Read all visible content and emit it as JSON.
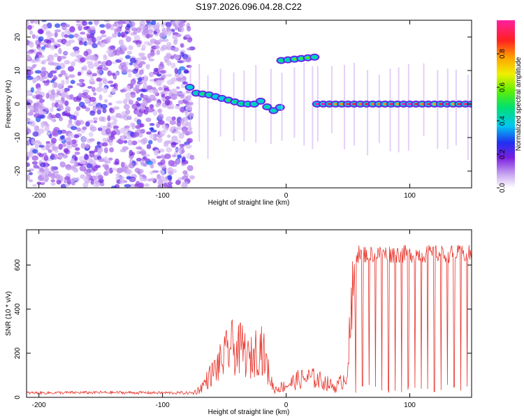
{
  "title": "S197.2026.096.04.28.C22",
  "chart_data": [
    {
      "type": "heatmap",
      "xlabel": "Height of straight line (km)",
      "ylabel": "Frequency (Hz)",
      "xlim": [
        -210,
        150
      ],
      "ylim": [
        -25,
        25
      ],
      "xticks": [
        -200,
        -100,
        0,
        100
      ],
      "yticks": [
        -20,
        -10,
        0,
        10,
        20
      ],
      "colorbar": {
        "label": "Normalized spectral amplitude",
        "range": [
          0,
          1
        ],
        "ticks": [
          "0.0",
          "0.2",
          "0.4",
          "0.6",
          "0.8"
        ]
      },
      "features": [
        {
          "kind": "noise",
          "x_range": [
            -210,
            -76
          ],
          "y_range": [
            -25,
            25
          ],
          "level": 0.2
        },
        {
          "kind": "track",
          "x": [
            -78,
            -72,
            -65,
            -55,
            -45,
            -35,
            -25,
            -20,
            -15,
            -10,
            -5
          ],
          "y": [
            5,
            3,
            3,
            2,
            1,
            0,
            0,
            1,
            -1,
            -2,
            -1
          ],
          "level": 0.45
        },
        {
          "kind": "track",
          "x": [
            -4,
            23
          ],
          "y": [
            13,
            14
          ],
          "level": 0.5
        },
        {
          "kind": "track",
          "x": [
            25,
            150
          ],
          "y": [
            0,
            0
          ],
          "level": 0.9
        }
      ]
    },
    {
      "type": "line",
      "xlabel": "Height of straight line (km)",
      "ylabel": "SNR (10 * v/v)",
      "xlim": [
        -210,
        150
      ],
      "ylim": [
        0,
        760
      ],
      "xticks": [
        -200,
        -100,
        0,
        100
      ],
      "yticks": [
        0,
        200,
        400,
        600
      ],
      "series": [
        {
          "name": "SNR",
          "color": "#e8332a",
          "profile": [
            [
              -210,
              20
            ],
            [
              -150,
              22
            ],
            [
              -76,
              20
            ],
            [
              -70,
              40
            ],
            [
              -60,
              120
            ],
            [
              -50,
              200
            ],
            [
              -45,
              260
            ],
            [
              -40,
              230
            ],
            [
              -35,
              250
            ],
            [
              -30,
              180
            ],
            [
              -25,
              230
            ],
            [
              -20,
              260
            ],
            [
              -15,
              140
            ],
            [
              -10,
              40
            ],
            [
              0,
              60
            ],
            [
              10,
              90
            ],
            [
              20,
              100
            ],
            [
              30,
              80
            ],
            [
              40,
              50
            ],
            [
              48,
              100
            ],
            [
              50,
              180
            ],
            [
              53,
              400
            ],
            [
              56,
              650
            ],
            [
              150,
              650
            ]
          ]
        }
      ]
    }
  ]
}
